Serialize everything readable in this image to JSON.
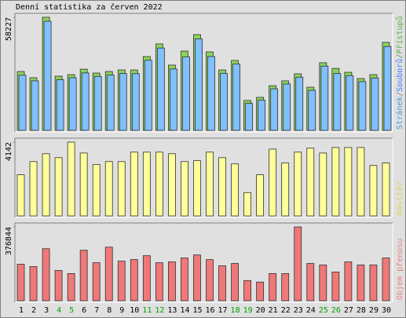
{
  "chart_data": {
    "type": "bar",
    "title": "Denní statistika za červen 2022",
    "categories": [
      "1",
      "2",
      "3",
      "4",
      "5",
      "6",
      "7",
      "8",
      "9",
      "10",
      "11",
      "12",
      "13",
      "14",
      "15",
      "16",
      "17",
      "18",
      "19",
      "20",
      "21",
      "22",
      "23",
      "24",
      "25",
      "26",
      "27",
      "28",
      "29",
      "30"
    ],
    "category_colors": [
      "#000000",
      "#000000",
      "#000000",
      "#00a000",
      "#00a000",
      "#000000",
      "#000000",
      "#000000",
      "#000000",
      "#000000",
      "#00a000",
      "#00a000",
      "#000000",
      "#000000",
      "#000000",
      "#000000",
      "#000000",
      "#00a000",
      "#00a000",
      "#000000",
      "#000000",
      "#000000",
      "#000000",
      "#000000",
      "#00a000",
      "#00a000",
      "#000000",
      "#000000",
      "#000000",
      "#000000"
    ],
    "panels": [
      {
        "ylim": [
          0,
          58227
        ],
        "yticks": [
          58227
        ],
        "label_parts": [
          {
            "text": "Stránek",
            "color": "#40a0e0"
          },
          {
            "text": "/",
            "color": "#808080"
          },
          {
            "text": "Souborů",
            "color": "#4080ff"
          },
          {
            "text": "/",
            "color": "#808080"
          },
          {
            "text": "Přístupů",
            "color": "#60b040"
          }
        ],
        "series": [
          {
            "color": "#8cd25a",
            "values": [
              30300,
              27100,
              58227,
              27900,
              28700,
              31500,
              29500,
              30300,
              31100,
              31100,
              38000,
              44500,
              33600,
              40800,
              49300,
              40400,
              31100,
              36000,
              15400,
              17000,
              23000,
              25500,
              29100,
              22200,
              34800,
              31900,
              29900,
              26700,
              28700,
              45300
            ]
          },
          {
            "color": "#80c0ff",
            "values": [
              29200,
              26300,
              57000,
              26900,
              27900,
              30400,
              28600,
              29300,
              30100,
              30000,
              36900,
              43200,
              32400,
              38600,
              47900,
              38800,
              30200,
              35000,
              14700,
              16300,
              22200,
              24700,
              28200,
              21400,
              33900,
              30100,
              29000,
              25900,
              27800,
              44000
            ]
          }
        ]
      },
      {
        "ylim": [
          0,
          4142
        ],
        "yticks": [
          4142
        ],
        "label_parts": [
          {
            "text": "Návštěv",
            "color": "#d8d860"
          }
        ],
        "series": [
          {
            "color": "#ffff99",
            "values": [
              2310,
              3050,
              3490,
              3270,
              4142,
              3530,
              2880,
              3050,
              3050,
              3580,
              3580,
              3580,
              3490,
              3050,
              3100,
              3580,
              3270,
              2920,
              1310,
              2310,
              3750,
              2970,
              3580,
              3800,
              3530,
              3840,
              3840,
              3840,
              2830,
              2970
            ]
          }
        ]
      },
      {
        "ylim": [
          0,
          376844
        ],
        "yticks": [
          376844
        ],
        "label_parts": [
          {
            "text": "Objem přenosu",
            "color": "#f08080"
          }
        ],
        "series": [
          {
            "color": "#f07878",
            "values": [
              186400,
              174500,
              265700,
              154700,
              138800,
              257700,
              194300,
              273600,
              202200,
              210100,
              229900,
              194300,
              198200,
              218100,
              233900,
              210100,
              178400,
              190300,
              103100,
              95200,
              138800,
              138800,
              376844,
              190300,
              182400,
              146700,
              198200,
              182400,
              182400,
              218100
            ]
          }
        ]
      }
    ]
  }
}
